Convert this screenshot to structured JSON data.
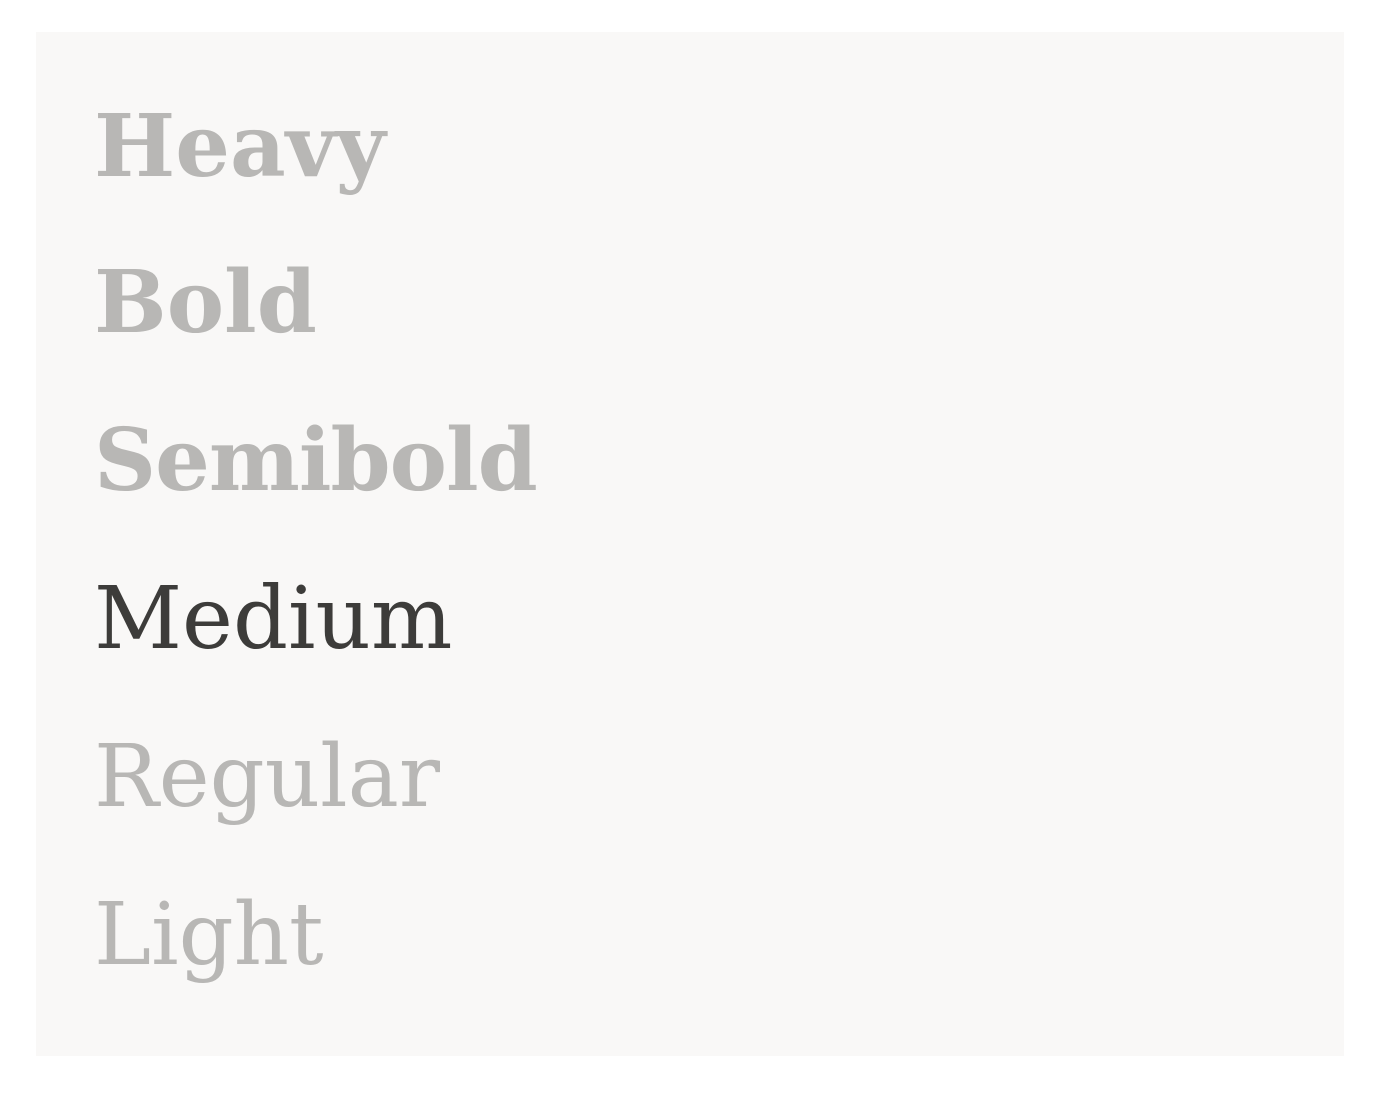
{
  "weights": {
    "selected": "Medium",
    "active_color": "#3d3c3a",
    "inactive_color": "#b8b7b5",
    "background_color": "#f9f8f7",
    "items": [
      {
        "label": "Heavy"
      },
      {
        "label": "Bold"
      },
      {
        "label": "Semibold"
      },
      {
        "label": "Medium"
      },
      {
        "label": "Regular"
      },
      {
        "label": "Light"
      }
    ]
  }
}
